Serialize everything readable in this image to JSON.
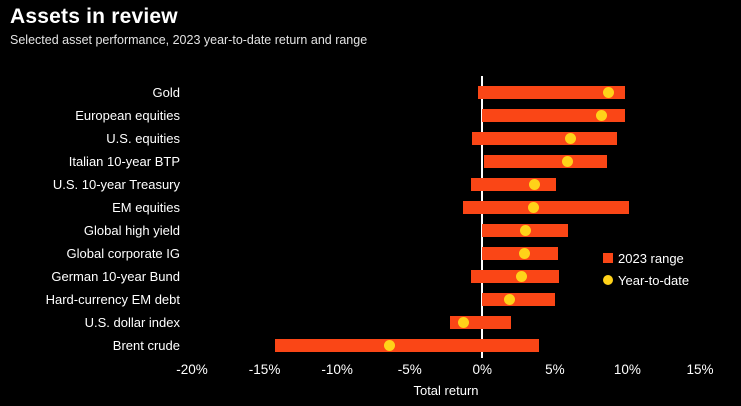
{
  "chart_data": {
    "type": "bar",
    "subtype": "horizontal-range-with-dot",
    "title": "Assets in review",
    "subtitle": "Selected asset performance, 2023 year-to-date return and range",
    "xlabel": "Total return",
    "xlim": [
      -20,
      15
    ],
    "xticks": [
      -20,
      -15,
      -10,
      -5,
      0,
      5,
      10,
      15
    ],
    "xtick_labels": [
      "-20%",
      "-15%",
      "-10%",
      "-5%",
      "0%",
      "5%",
      "10%",
      "15%"
    ],
    "grid": false,
    "legend_position": "right-middle",
    "legend": [
      "2023 range",
      "Year-to-date"
    ],
    "categories": [
      "Gold",
      "European equities",
      "U.S. equities",
      "Italian 10-year BTP",
      "U.S. 10-year Treasury",
      "EM equities",
      "Global high yield",
      "Global corporate IG",
      "German 10-year Bund",
      "Hard-currency EM debt",
      "U.S. dollar index",
      "Brent crude"
    ],
    "series": [
      {
        "name": "2023 range low (%)",
        "values": [
          -0.3,
          0.0,
          -0.7,
          0.1,
          -0.8,
          -1.3,
          0.0,
          0.0,
          -0.8,
          0.0,
          -2.2,
          -14.3
        ]
      },
      {
        "name": "2023 range high (%)",
        "values": [
          9.8,
          9.8,
          9.3,
          8.6,
          5.1,
          10.1,
          5.9,
          5.2,
          5.3,
          5.0,
          2.0,
          3.9
        ]
      },
      {
        "name": "Year-to-date (%)",
        "values": [
          8.7,
          8.2,
          6.1,
          5.9,
          3.6,
          3.5,
          3.0,
          2.9,
          2.7,
          1.9,
          -1.3,
          -6.4
        ]
      }
    ],
    "colors": {
      "range_bar": "#fa4616",
      "ytd_dot": "#ffd219",
      "zero_line": "#ffffff",
      "background": "#000000",
      "text": "#ffffff"
    }
  }
}
